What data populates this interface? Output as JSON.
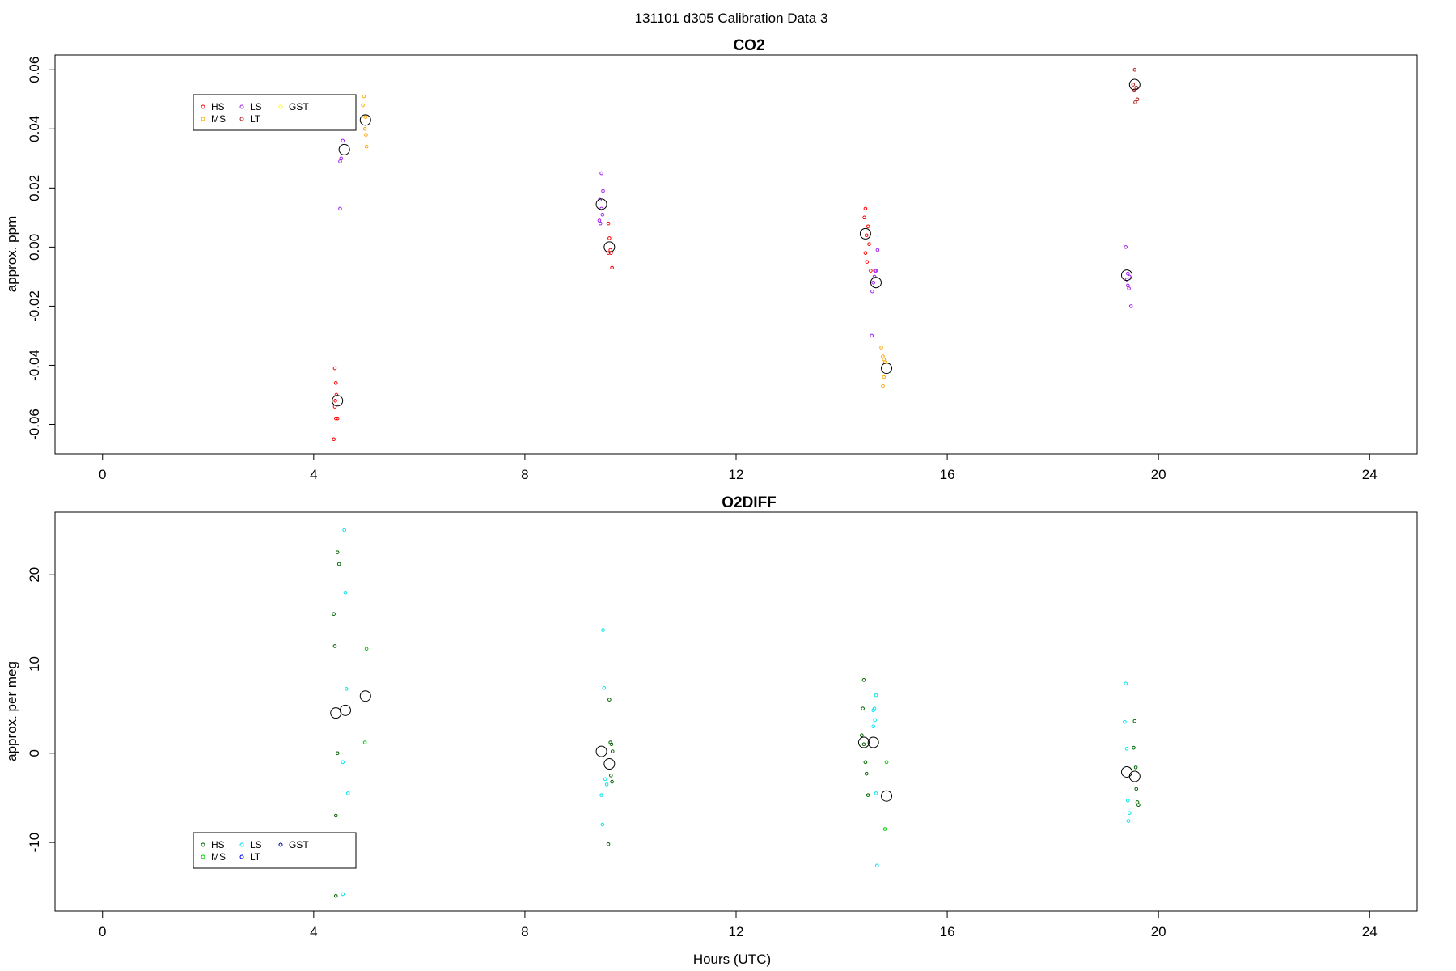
{
  "title": "131101   d305   Calibration Data 3",
  "legend_markers": [
    "HS",
    "MS",
    "LS",
    "LT",
    "GST"
  ],
  "chart_data": [
    {
      "type": "scatter",
      "title": "CO2",
      "xlabel": "",
      "ylabel": "approx. ppm",
      "xlim": [
        -0.9,
        24.9
      ],
      "ylim": [
        -0.07,
        0.065
      ],
      "xticks": [
        0,
        4,
        8,
        12,
        16,
        20,
        24
      ],
      "yticks": [
        -0.06,
        -0.04,
        -0.02,
        0.0,
        0.02,
        0.04,
        0.06
      ],
      "ytick_labels": [
        "-0.06",
        "-0.04",
        "-0.02",
        "0.00",
        "0.02",
        "0.04",
        "0.06"
      ],
      "grid": false,
      "legend_position": "top-left",
      "colors": {
        "HS": "#ff0000",
        "MS": "#ffa500",
        "LS": "#a020f0",
        "LT": "#b22222",
        "GST": "#ffff00",
        "mean": "#000000"
      },
      "series": [
        {
          "name": "HS",
          "points": [
            [
              4.4,
              -0.041
            ],
            [
              4.42,
              -0.046
            ],
            [
              4.43,
              -0.05
            ],
            [
              4.41,
              -0.052
            ],
            [
              4.4,
              -0.054
            ],
            [
              4.45,
              -0.058
            ],
            [
              4.42,
              -0.058
            ],
            [
              4.38,
              -0.065
            ],
            [
              14.45,
              0.013
            ],
            [
              14.43,
              0.01
            ],
            [
              14.5,
              0.007
            ],
            [
              14.47,
              0.004
            ],
            [
              14.52,
              0.001
            ],
            [
              14.45,
              -0.002
            ],
            [
              14.48,
              -0.005
            ],
            [
              14.55,
              -0.008
            ],
            [
              9.58,
              0.008
            ],
            [
              9.6,
              0.003
            ],
            [
              9.62,
              -0.001
            ],
            [
              9.63,
              -0.002
            ],
            [
              9.58,
              -0.002
            ],
            [
              9.65,
              -0.007
            ]
          ]
        },
        {
          "name": "MS",
          "points": [
            [
              4.95,
              0.051
            ],
            [
              4.93,
              0.048
            ],
            [
              4.98,
              0.044
            ],
            [
              4.97,
              0.04
            ],
            [
              4.99,
              0.038
            ],
            [
              5.0,
              0.034
            ],
            [
              14.75,
              -0.034
            ],
            [
              14.78,
              -0.037
            ],
            [
              14.8,
              -0.038
            ],
            [
              14.82,
              -0.039
            ],
            [
              14.8,
              -0.044
            ],
            [
              14.78,
              -0.047
            ]
          ]
        },
        {
          "name": "LS",
          "points": [
            [
              4.55,
              0.036
            ],
            [
              4.52,
              0.03
            ],
            [
              4.5,
              0.029
            ],
            [
              4.5,
              0.013
            ],
            [
              9.45,
              0.025
            ],
            [
              9.48,
              0.019
            ],
            [
              9.42,
              0.016
            ],
            [
              9.45,
              0.013
            ],
            [
              9.47,
              0.011
            ],
            [
              9.41,
              0.009
            ],
            [
              9.43,
              0.008
            ],
            [
              14.68,
              -0.001
            ],
            [
              14.65,
              -0.008
            ],
            [
              14.63,
              -0.008
            ],
            [
              14.62,
              -0.01
            ],
            [
              14.6,
              -0.012
            ],
            [
              14.58,
              -0.015
            ],
            [
              14.57,
              -0.03
            ],
            [
              19.38,
              0.0
            ],
            [
              19.42,
              -0.009
            ],
            [
              19.45,
              -0.01
            ],
            [
              19.4,
              -0.011
            ],
            [
              19.42,
              -0.013
            ],
            [
              19.44,
              -0.014
            ],
            [
              19.48,
              -0.02
            ]
          ]
        },
        {
          "name": "LT",
          "points": [
            [
              19.55,
              0.06
            ],
            [
              19.52,
              0.055
            ],
            [
              19.58,
              0.054
            ],
            [
              19.54,
              0.053
            ],
            [
              19.6,
              0.05
            ],
            [
              19.56,
              0.049
            ]
          ]
        },
        {
          "name": "GST",
          "points": []
        }
      ],
      "means": [
        [
          4.45,
          -0.052
        ],
        [
          4.58,
          0.033
        ],
        [
          4.98,
          0.043
        ],
        [
          9.45,
          0.0145
        ],
        [
          9.6,
          0.0
        ],
        [
          14.45,
          0.0045
        ],
        [
          14.65,
          -0.012
        ],
        [
          14.85,
          -0.041
        ],
        [
          19.4,
          -0.0095
        ],
        [
          19.55,
          0.055
        ]
      ]
    },
    {
      "type": "scatter",
      "title": "O2DIFF",
      "xlabel": "Hours (UTC)",
      "ylabel": "approx. per meg",
      "xlim": [
        -0.9,
        24.9
      ],
      "ylim": [
        -17.7,
        27.0
      ],
      "xticks": [
        0,
        4,
        8,
        12,
        16,
        20,
        24
      ],
      "yticks": [
        -10,
        0,
        10,
        20
      ],
      "ytick_labels": [
        "-10",
        "0",
        "10",
        "20"
      ],
      "grid": false,
      "legend_position": "bottom-left",
      "colors": {
        "HS": "#006400",
        "MS": "#00cd00",
        "LS": "#00e5ee",
        "LT": "#0000ff",
        "GST": "#00008b",
        "mean": "#000000"
      },
      "series": [
        {
          "name": "HS",
          "points": [
            [
              4.45,
              22.5
            ],
            [
              4.48,
              21.2
            ],
            [
              4.38,
              15.6
            ],
            [
              4.4,
              12.0
            ],
            [
              4.45,
              0.0
            ],
            [
              4.42,
              -7.0
            ],
            [
              4.42,
              -16.0
            ],
            [
              9.6,
              6.0
            ],
            [
              9.62,
              1.2
            ],
            [
              9.64,
              1.0
            ],
            [
              9.66,
              0.2
            ],
            [
              9.63,
              -2.5
            ],
            [
              9.65,
              -3.2
            ],
            [
              9.58,
              -10.2
            ],
            [
              14.42,
              8.2
            ],
            [
              14.4,
              5.0
            ],
            [
              14.38,
              2.0
            ],
            [
              14.42,
              1.0
            ],
            [
              14.45,
              -1.0
            ],
            [
              14.47,
              -2.3
            ],
            [
              14.5,
              -4.7
            ],
            [
              19.55,
              3.6
            ],
            [
              19.53,
              0.6
            ],
            [
              19.57,
              -1.6
            ],
            [
              19.58,
              -4.0
            ],
            [
              19.6,
              -5.5
            ],
            [
              19.62,
              -5.8
            ]
          ]
        },
        {
          "name": "MS",
          "points": [
            [
              5.0,
              11.7
            ],
            [
              4.97,
              1.2
            ],
            [
              14.85,
              -1.0
            ],
            [
              14.82,
              -8.5
            ]
          ]
        },
        {
          "name": "LS",
          "points": [
            [
              4.58,
              25.0
            ],
            [
              4.6,
              18.0
            ],
            [
              4.62,
              7.2
            ],
            [
              4.55,
              -1.0
            ],
            [
              4.65,
              -4.5
            ],
            [
              4.55,
              -15.8
            ],
            [
              9.48,
              13.8
            ],
            [
              9.5,
              7.3
            ],
            [
              9.52,
              -2.9
            ],
            [
              9.55,
              -3.5
            ],
            [
              9.45,
              -4.7
            ],
            [
              9.47,
              -8.0
            ],
            [
              14.65,
              6.5
            ],
            [
              14.62,
              5.0
            ],
            [
              14.6,
              4.8
            ],
            [
              14.63,
              3.7
            ],
            [
              14.6,
              3.0
            ],
            [
              14.65,
              -4.5
            ],
            [
              14.67,
              -12.6
            ],
            [
              19.38,
              7.8
            ],
            [
              19.36,
              3.5
            ],
            [
              19.4,
              0.5
            ],
            [
              19.42,
              -5.3
            ],
            [
              19.45,
              -6.7
            ],
            [
              19.43,
              -7.6
            ]
          ]
        },
        {
          "name": "LT",
          "points": []
        },
        {
          "name": "GST",
          "points": []
        }
      ],
      "means": [
        [
          4.42,
          4.5
        ],
        [
          4.6,
          4.8
        ],
        [
          4.98,
          6.4
        ],
        [
          9.45,
          0.2
        ],
        [
          9.6,
          -1.2
        ],
        [
          14.42,
          1.2
        ],
        [
          14.6,
          1.2
        ],
        [
          14.85,
          -4.8
        ],
        [
          19.4,
          -2.1
        ],
        [
          19.55,
          -2.6
        ]
      ]
    }
  ]
}
